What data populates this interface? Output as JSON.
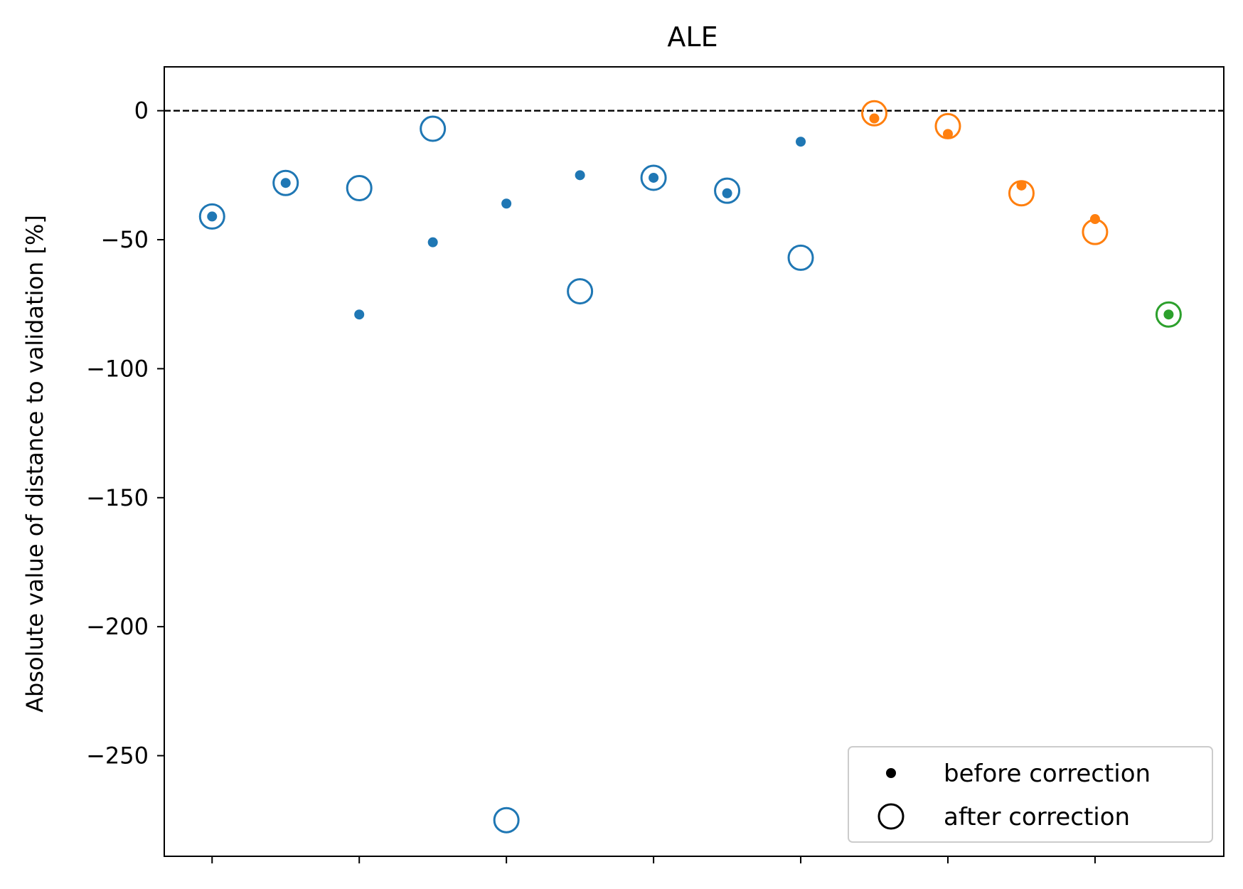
{
  "chart_data": {
    "type": "scatter",
    "title": "ALE",
    "xlabel": "",
    "ylabel": "Absolute value of distance to validation [%]",
    "xlim": [
      -0.65,
      13.75
    ],
    "ylim": [
      -289,
      17
    ],
    "yticks": [
      0,
      -50,
      -100,
      -150,
      -200,
      -250
    ],
    "ytick_labels": [
      "0",
      "−50",
      "−100",
      "−150",
      "−200",
      "−250"
    ],
    "xticks": [
      0,
      2,
      4,
      6,
      8,
      10,
      12
    ],
    "xtick_labels": [
      "",
      "",
      "",
      "",
      "",
      "",
      ""
    ],
    "reference_line": {
      "y": 0,
      "style": "dashed",
      "color": "#000000"
    },
    "grid": false,
    "legend_position": "lower-right",
    "legend": [
      {
        "label": "before correction",
        "marker": "filled-dot"
      },
      {
        "label": "after correction",
        "marker": "open-circle"
      }
    ],
    "colors": {
      "blue": "#1f77b4",
      "orange": "#ff7f0e",
      "green": "#2ca02c"
    },
    "points": [
      {
        "x": 0,
        "before": -41,
        "after": -41,
        "color": "blue"
      },
      {
        "x": 1,
        "before": -28,
        "after": -28,
        "color": "blue"
      },
      {
        "x": 2,
        "before": -79,
        "after": -30,
        "color": "blue"
      },
      {
        "x": 3,
        "before": -51,
        "after": -7,
        "color": "blue"
      },
      {
        "x": 4,
        "before": -36,
        "after": -275,
        "color": "blue"
      },
      {
        "x": 5,
        "before": -25,
        "after": -70,
        "color": "blue"
      },
      {
        "x": 6,
        "before": -26,
        "after": -26,
        "color": "blue"
      },
      {
        "x": 7,
        "before": -32,
        "after": -31,
        "color": "blue"
      },
      {
        "x": 8,
        "before": -12,
        "after": -57,
        "color": "blue"
      },
      {
        "x": 9,
        "before": -3,
        "after": -1,
        "color": "orange"
      },
      {
        "x": 10,
        "before": -9,
        "after": -6,
        "color": "orange"
      },
      {
        "x": 11,
        "before": -29,
        "after": -32,
        "color": "orange"
      },
      {
        "x": 12,
        "before": -42,
        "after": -47,
        "color": "orange"
      },
      {
        "x": 13,
        "before": -79,
        "after": -79,
        "color": "green"
      }
    ]
  }
}
